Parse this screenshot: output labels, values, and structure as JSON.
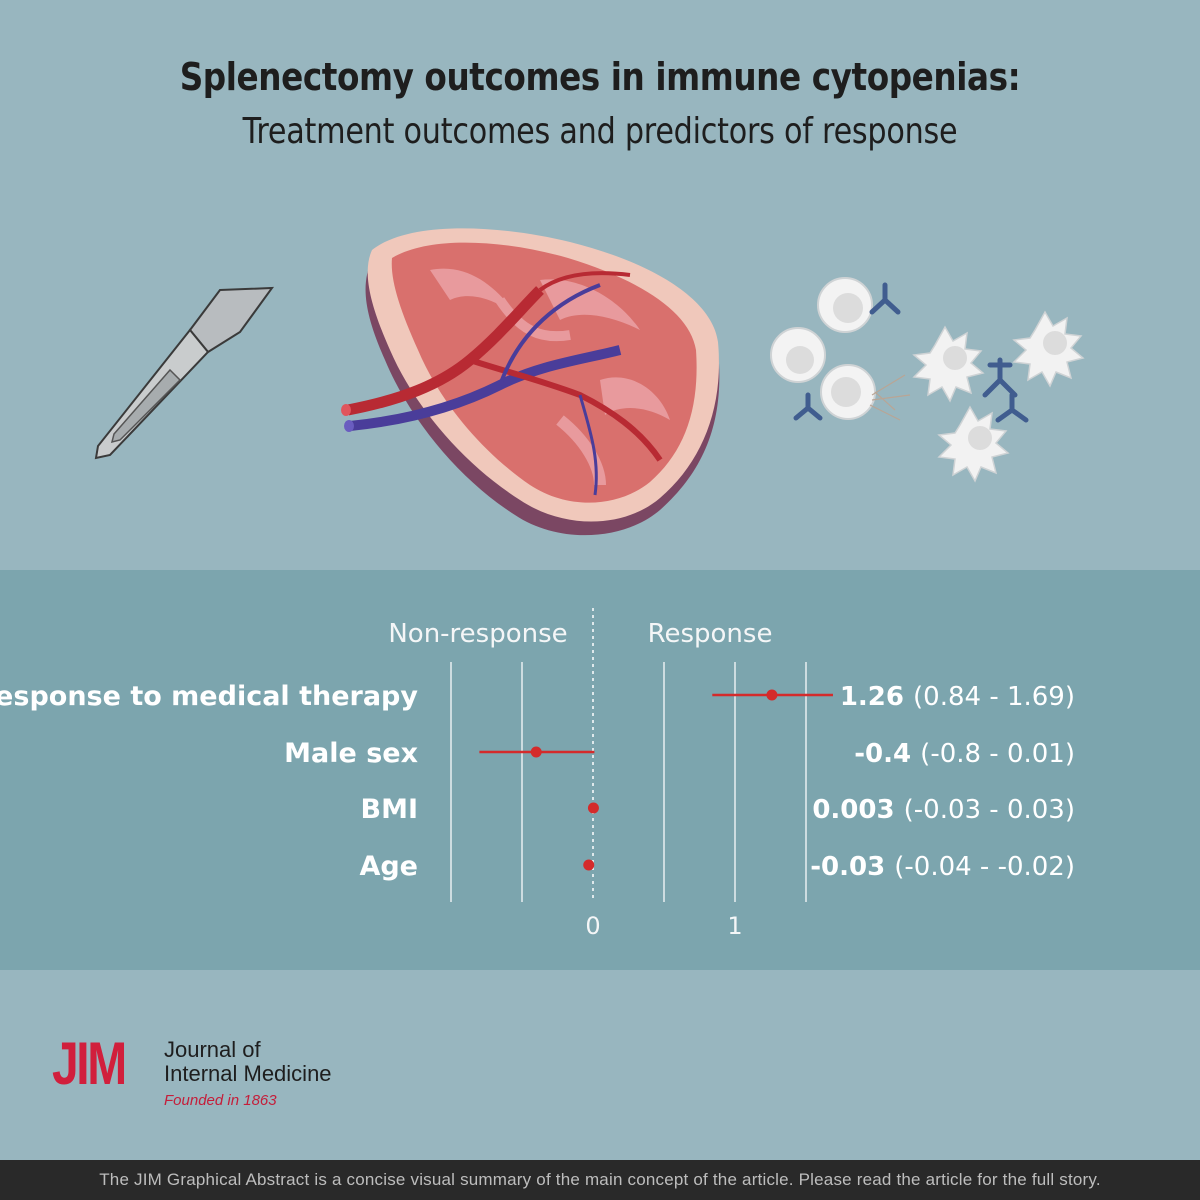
{
  "header": {
    "title": "Splenectomy outcomes in immune cytopenias:",
    "subtitle": "Treatment outcomes and predictors of response"
  },
  "illustration": {
    "icons": [
      "scalpel-icon",
      "spleen-icon",
      "immune-cells-icon",
      "antibody-icon",
      "platelet-icon"
    ]
  },
  "chart_data": {
    "type": "forest",
    "direction_labels": {
      "left": "Non-response",
      "right": "Response"
    },
    "x_ticks": [
      "0",
      "1"
    ],
    "xlim": [
      -1.0,
      1.5
    ],
    "rows": [
      {
        "label": "Response to medical therapy",
        "estimate": 1.26,
        "lower": 0.84,
        "upper": 1.69,
        "est_text": "1.26",
        "ci_text": "(0.84 - 1.69)"
      },
      {
        "label": "Male sex",
        "estimate": -0.4,
        "lower": -0.8,
        "upper": 0.01,
        "est_text": "-0.4",
        "ci_text": "(-0.8 - 0.01)"
      },
      {
        "label": "BMI",
        "estimate": 0.003,
        "lower": -0.03,
        "upper": 0.03,
        "est_text": "0.003",
        "ci_text": "(-0.03 - 0.03)"
      },
      {
        "label": "Age",
        "estimate": -0.03,
        "lower": -0.04,
        "upper": -0.02,
        "est_text": "-0.03",
        "ci_text": "(-0.04 - -0.02)"
      }
    ],
    "colors": {
      "marker": "#d42b2b",
      "gridline": "#e8eef0",
      "zero_line": "#ffffff"
    }
  },
  "logo": {
    "abbr": "JIM",
    "name_line1": "Journal of",
    "name_line2": "Internal Medicine",
    "founded": "Founded in 1863"
  },
  "footer": {
    "text": "The JIM Graphical Abstract is a concise visual summary of the main concept of the article. Please read the article for the full story."
  }
}
